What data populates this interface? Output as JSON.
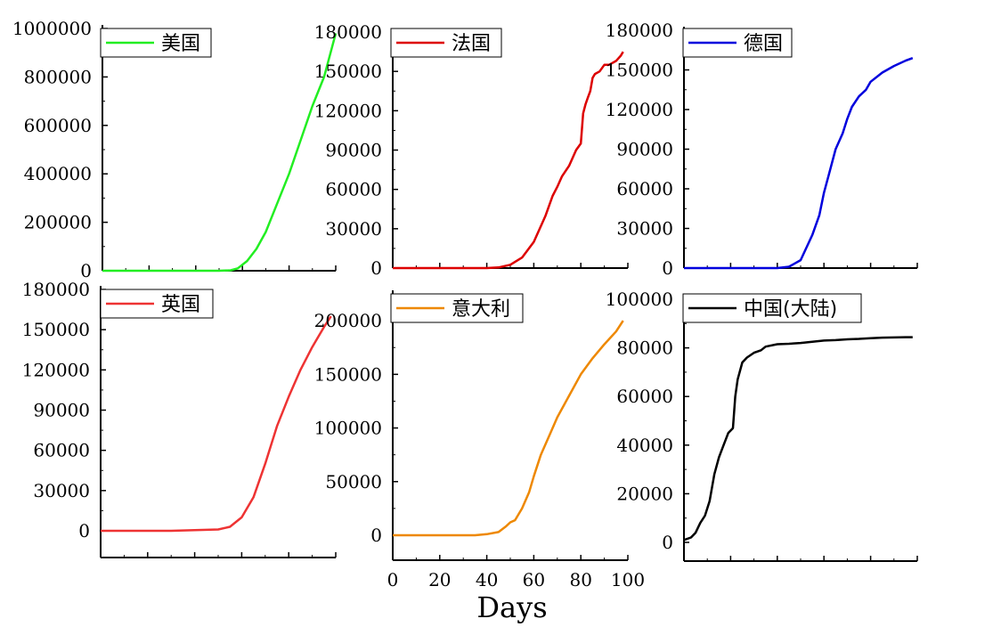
{
  "chart_data": [
    {
      "type": "line",
      "series": [
        {
          "name": "美国",
          "color": "#22ee22"
        }
      ],
      "x": [
        0,
        10,
        20,
        30,
        40,
        50,
        55,
        58,
        62,
        66,
        70,
        75,
        80,
        85,
        90,
        95,
        100
      ],
      "y": [
        0,
        0,
        0,
        0,
        0,
        0,
        2000,
        10000,
        40000,
        90000,
        160000,
        280000,
        400000,
        540000,
        680000,
        800000,
        980000
      ],
      "yticks": [
        "0",
        "200000",
        "400000",
        "600000",
        "800000",
        "1000000"
      ],
      "ylim": [
        0,
        1000000
      ],
      "xlim": [
        0,
        100
      ],
      "xtick_labels": false,
      "legend_position": "top-left"
    },
    {
      "type": "line",
      "series": [
        {
          "name": "法国",
          "color": "#dd0000"
        }
      ],
      "x": [
        0,
        10,
        20,
        30,
        40,
        45,
        50,
        55,
        60,
        62,
        65,
        68,
        70,
        72,
        75,
        78,
        80,
        81,
        82,
        83,
        84,
        85,
        86,
        88,
        90,
        92,
        95,
        97,
        98
      ],
      "y": [
        0,
        0,
        0,
        0,
        0,
        500,
        2500,
        8000,
        20000,
        28000,
        40000,
        55000,
        62000,
        70000,
        78000,
        90000,
        95000,
        118000,
        125000,
        130000,
        135000,
        145000,
        148000,
        150000,
        155000,
        155000,
        158000,
        162000,
        165000
      ],
      "yticks": [
        "0",
        "30000",
        "60000",
        "90000",
        "120000",
        "150000",
        "180000"
      ],
      "ylim": [
        0,
        180000
      ],
      "xlim": [
        0,
        100
      ],
      "xtick_labels": false,
      "legend_position": "top-left"
    },
    {
      "type": "line",
      "series": [
        {
          "name": "德国",
          "color": "#0000dd"
        }
      ],
      "x": [
        0,
        10,
        20,
        30,
        40,
        45,
        50,
        55,
        58,
        60,
        62,
        65,
        68,
        70,
        72,
        75,
        78,
        80,
        85,
        90,
        95,
        98
      ],
      "y": [
        0,
        0,
        0,
        0,
        0,
        1000,
        6000,
        25000,
        40000,
        57000,
        70000,
        90000,
        102000,
        113000,
        122000,
        130000,
        135000,
        141000,
        148000,
        153000,
        157000,
        159000
      ],
      "yticks": [
        "0",
        "30000",
        "60000",
        "90000",
        "120000",
        "150000",
        "180000"
      ],
      "ylim": [
        0,
        180000
      ],
      "xlim": [
        0,
        100
      ],
      "xtick_labels": false,
      "legend_position": "top-left"
    },
    {
      "type": "line",
      "series": [
        {
          "name": "英国",
          "color": "#ee3333"
        }
      ],
      "x": [
        0,
        10,
        20,
        30,
        40,
        50,
        55,
        60,
        65,
        70,
        75,
        80,
        85,
        90,
        95,
        98
      ],
      "y": [
        0,
        0,
        0,
        0,
        500,
        1000,
        3000,
        10000,
        25000,
        50000,
        78000,
        100000,
        120000,
        137000,
        152000,
        160000
      ],
      "yticks": [
        "0",
        "30000",
        "60000",
        "90000",
        "120000",
        "150000",
        "180000"
      ],
      "ylim": [
        0,
        180000
      ],
      "xlim": [
        0,
        100
      ],
      "xtick_labels": false,
      "legend_position": "top-left"
    },
    {
      "type": "line",
      "series": [
        {
          "name": "意大利",
          "color": "#ee8800"
        }
      ],
      "x": [
        0,
        10,
        20,
        30,
        35,
        40,
        45,
        48,
        50,
        52,
        55,
        58,
        60,
        63,
        67,
        70,
        75,
        80,
        85,
        90,
        95,
        98
      ],
      "y": [
        0,
        0,
        0,
        0,
        0,
        1000,
        3000,
        8000,
        12000,
        14000,
        25000,
        40000,
        55000,
        75000,
        95000,
        110000,
        130000,
        150000,
        165000,
        178000,
        190000,
        200000
      ],
      "yticks": [
        "0",
        "50000",
        "100000",
        "150000",
        "200000"
      ],
      "ylim": [
        0,
        225000
      ],
      "xlim": [
        0,
        100
      ],
      "xticks": [
        "0",
        "20",
        "40",
        "60",
        "80",
        "100"
      ],
      "xtick_labels": true,
      "xlabel": "Days",
      "legend_position": "top-left"
    },
    {
      "type": "line",
      "series": [
        {
          "name": "中国(大陆)",
          "color": "#000000"
        }
      ],
      "x": [
        0,
        3,
        5,
        7,
        9,
        11,
        13,
        15,
        17,
        19,
        21,
        22,
        23,
        25,
        27,
        30,
        33,
        35,
        40,
        45,
        50,
        55,
        60,
        65,
        70,
        75,
        80,
        85,
        90,
        95,
        98
      ],
      "y": [
        1000,
        2000,
        4000,
        8000,
        11000,
        17000,
        28000,
        35000,
        40000,
        45000,
        47000,
        60000,
        67000,
        74000,
        76000,
        78000,
        79000,
        80500,
        81500,
        81700,
        82000,
        82500,
        83000,
        83200,
        83500,
        83700,
        84000,
        84200,
        84300,
        84400,
        84400
      ],
      "yticks": [
        "0",
        "20000",
        "40000",
        "60000",
        "80000",
        "100000"
      ],
      "ylim": [
        0,
        100000
      ],
      "xlim": [
        0,
        100
      ],
      "xtick_labels": false,
      "legend_position": "top-left"
    }
  ]
}
